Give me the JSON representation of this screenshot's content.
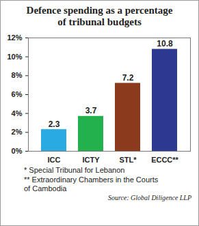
{
  "chart_data": {
    "type": "bar",
    "title": "Defence spending as a percentage of tribunal budgets",
    "categories": [
      "ICC",
      "ICTY",
      "STL*",
      "ECCC**"
    ],
    "values": [
      2.3,
      3.7,
      7.2,
      10.8
    ],
    "colors": [
      "#29abe2",
      "#22b14c",
      "#8b3a1d",
      "#2b3990"
    ],
    "ylim": [
      0,
      12
    ],
    "yticks": [
      {
        "value": 0,
        "label": "0%"
      },
      {
        "value": 2,
        "label": "2%"
      },
      {
        "value": 4,
        "label": "4%"
      },
      {
        "value": 6,
        "label": "6%"
      },
      {
        "value": 8,
        "label": "8%"
      },
      {
        "value": 10,
        "label": "10%"
      },
      {
        "value": 12,
        "label": "12%"
      }
    ],
    "grid": false,
    "data_labels": true,
    "annotations": [
      "* Special Tribunal for Lebanon",
      "** Extraordinary Chambers in the Courts of Cambodia"
    ],
    "source": "Source: Global Diligence LLP"
  }
}
